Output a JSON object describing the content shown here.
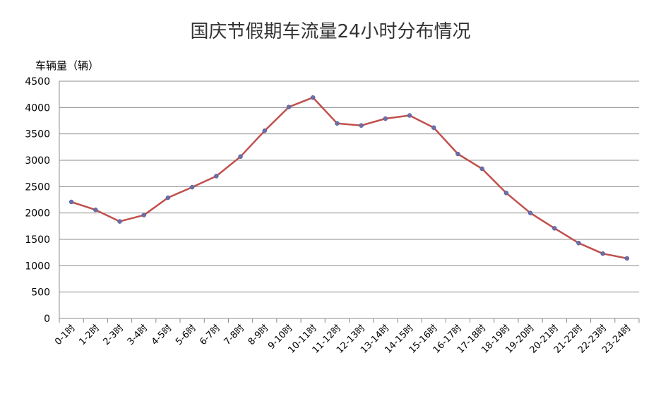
{
  "chart_data": {
    "type": "line",
    "title": "国庆节假期车流量24小时分布情况",
    "ylabel": "车辆量（辆）",
    "xlabel": "",
    "ylim": [
      0,
      4500
    ],
    "yticks": [
      0,
      500,
      1000,
      1500,
      2000,
      2500,
      3000,
      3500,
      4000,
      4500
    ],
    "grid": true,
    "legend": "none",
    "colors": {
      "line": "#c0504d",
      "marker": "#6a6fa8",
      "grid": "#8c8c8c"
    },
    "categories": [
      "0-1时",
      "1-2时",
      "2-3时",
      "3-4时",
      "4-5时",
      "5-6时",
      "6-7时",
      "7-8时",
      "8-9时",
      "9-10时",
      "10-11时",
      "11-12时",
      "12-13时",
      "13-14时",
      "14-15时",
      "15-16时",
      "16-17时",
      "17-18时",
      "18-19时",
      "19-20时",
      "20-21时",
      "21-22时",
      "22-23时",
      "23-24时"
    ],
    "values": [
      2210,
      2060,
      1840,
      1960,
      2290,
      2490,
      2700,
      3070,
      3560,
      4010,
      4190,
      3700,
      3660,
      3790,
      3850,
      3620,
      3120,
      2840,
      2380,
      2000,
      1710,
      1430,
      1230,
      1140
    ]
  }
}
